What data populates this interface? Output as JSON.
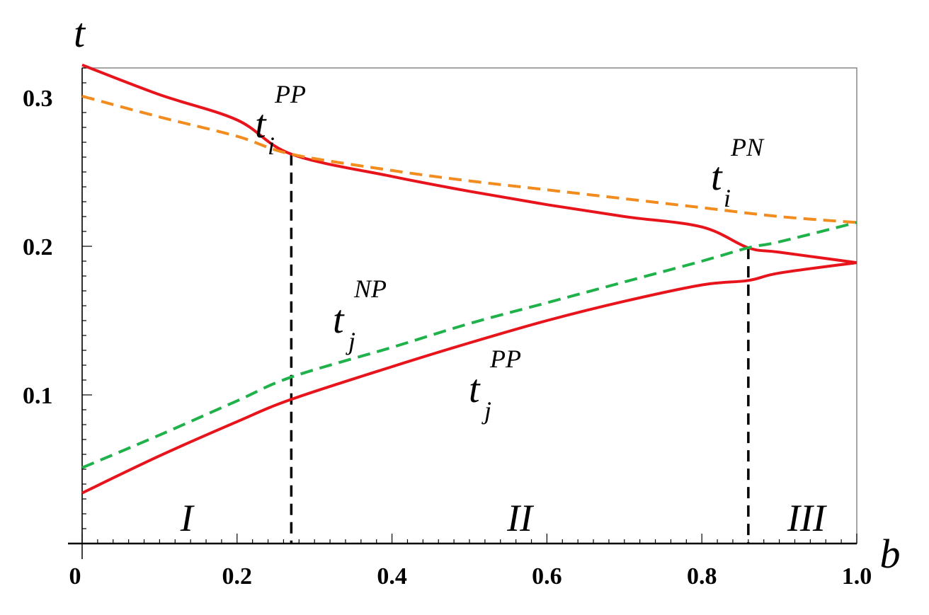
{
  "chart_data": {
    "type": "line",
    "xlabel": "b",
    "ylabel": "t",
    "xlim": [
      0,
      1.0
    ],
    "ylim": [
      0,
      0.32
    ],
    "x_ticks": [
      0,
      0.2,
      0.4,
      0.6,
      0.8,
      1.0
    ],
    "x_tick_labels": [
      "0",
      "0.2",
      "0.4",
      "0.6",
      "0.8",
      "1.0"
    ],
    "y_ticks": [
      0.1,
      0.2,
      0.3
    ],
    "y_tick_labels": [
      "0.1",
      "0.2",
      "0.3"
    ],
    "grid": false,
    "series": [
      {
        "label_base": "t",
        "label_sup": "PP",
        "label_sub": "i",
        "style": "solid",
        "color": "#e8141c",
        "x": [
          0,
          0.1,
          0.2,
          0.27,
          0.4,
          0.5,
          0.6,
          0.7,
          0.8,
          0.86,
          0.9,
          1.0
        ],
        "y": [
          0.322,
          0.302,
          0.285,
          0.262,
          0.247,
          0.237,
          0.228,
          0.22,
          0.213,
          0.199,
          0.196,
          0.189
        ]
      },
      {
        "label_base": "t",
        "label_sup": "PN",
        "label_sub": "i",
        "style": "dashed",
        "color": "#f28c1e",
        "x": [
          0,
          0.1,
          0.2,
          0.27,
          0.4,
          0.5,
          0.6,
          0.7,
          0.8,
          0.9,
          1.0
        ],
        "y": [
          0.301,
          0.287,
          0.274,
          0.262,
          0.251,
          0.244,
          0.238,
          0.232,
          0.226,
          0.22,
          0.216
        ]
      },
      {
        "label_base": "t",
        "label_sup": "NP",
        "label_sub": "j",
        "style": "dashed",
        "color": "#1fb14a",
        "x": [
          0,
          0.1,
          0.2,
          0.27,
          0.4,
          0.5,
          0.6,
          0.7,
          0.8,
          0.86,
          0.9,
          1.0
        ],
        "y": [
          0.051,
          0.073,
          0.096,
          0.112,
          0.132,
          0.148,
          0.162,
          0.176,
          0.19,
          0.199,
          0.203,
          0.216
        ]
      },
      {
        "label_base": "t",
        "label_sup": "PP",
        "label_sub": "j",
        "style": "solid",
        "color": "#e8141c",
        "x": [
          0,
          0.1,
          0.2,
          0.27,
          0.4,
          0.5,
          0.6,
          0.7,
          0.8,
          0.86,
          0.9,
          1.0
        ],
        "y": [
          0.034,
          0.059,
          0.082,
          0.097,
          0.119,
          0.135,
          0.15,
          0.163,
          0.174,
          0.177,
          0.182,
          0.189
        ]
      }
    ],
    "vertical_markers": [
      {
        "x": 0.27,
        "y_top": 0.262,
        "style": "dashed",
        "color": "#000000"
      },
      {
        "x": 0.86,
        "y_top": 0.199,
        "style": "dashed",
        "color": "#000000"
      }
    ],
    "regions": [
      {
        "label": "I",
        "x": 0.135
      },
      {
        "label": "II",
        "x": 0.565
      },
      {
        "label": "III",
        "x": 0.935
      }
    ]
  }
}
